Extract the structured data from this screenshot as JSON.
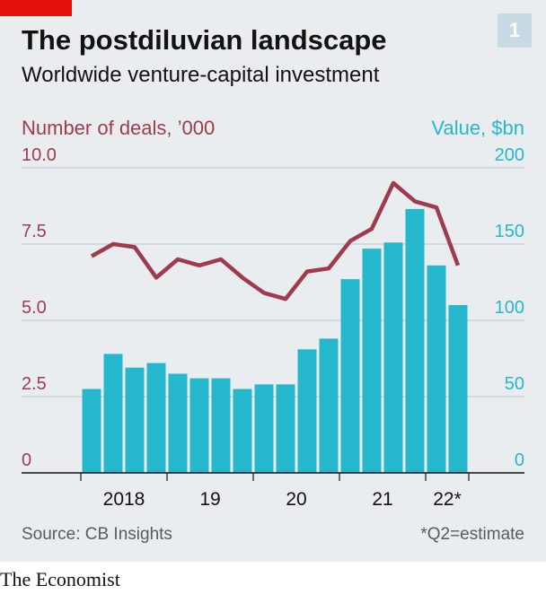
{
  "header": {
    "title": "The postdiluvian landscape",
    "subtitle": "Worldwide venture-capital investment",
    "chart_number": "1"
  },
  "colors": {
    "brand_red": "#e3120b",
    "line": "#9e3b4f",
    "bars": "#25b7cc"
  },
  "footer": {
    "source": "Source: CB Insights",
    "note": "*Q2=estimate",
    "brand": "The Economist"
  },
  "chart_data": {
    "type": "bar",
    "title": "The postdiluvian landscape",
    "subtitle": "Worldwide venture-capital investment",
    "categories": [
      "2018 Q1",
      "2018 Q2",
      "2018 Q3",
      "2018 Q4",
      "2019 Q1",
      "2019 Q2",
      "2019 Q3",
      "2019 Q4",
      "2020 Q1",
      "2020 Q2",
      "2020 Q3",
      "2020 Q4",
      "2021 Q1",
      "2021 Q2",
      "2021 Q3",
      "2021 Q4",
      "2022 Q1",
      "2022 Q2"
    ],
    "x_tick_labels": [
      "2018",
      "19",
      "20",
      "21",
      "22*"
    ],
    "ylabel_left": "Number of deals, ’000",
    "ylabel_right": "Value, $bn",
    "ylim_left": [
      0,
      10
    ],
    "ylim_right": [
      0,
      200
    ],
    "yticks_left": [
      "10.0",
      "7.5",
      "5.0",
      "2.5",
      "0"
    ],
    "yticks_right": [
      "200",
      "150",
      "100",
      "50",
      "0"
    ],
    "grid": true,
    "series": [
      {
        "name": "Value, $bn",
        "type": "bar",
        "axis": "right",
        "values": [
          55,
          78,
          69,
          72,
          65,
          62,
          62,
          55,
          58,
          58,
          81,
          88,
          127,
          147,
          151,
          173,
          136,
          110
        ]
      },
      {
        "name": "Number of deals, ’000",
        "type": "line",
        "axis": "left",
        "values": [
          7.1,
          7.5,
          7.4,
          6.4,
          7.0,
          6.8,
          7.0,
          6.4,
          5.9,
          5.7,
          6.6,
          6.7,
          7.6,
          8.0,
          9.5,
          8.9,
          8.7,
          6.8
        ]
      }
    ]
  }
}
